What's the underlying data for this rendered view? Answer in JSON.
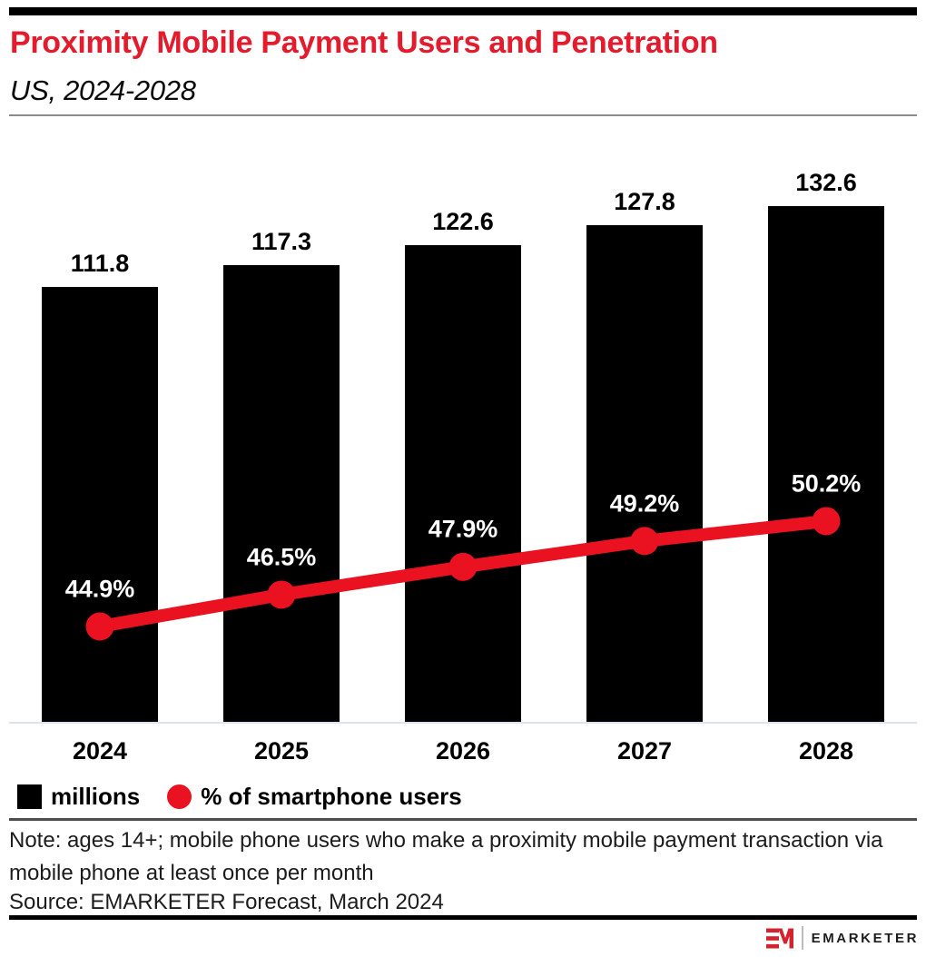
{
  "header": {
    "title": "Proximity Mobile Payment Users and Penetration",
    "subtitle": "US, 2024-2028"
  },
  "chart_data": {
    "type": "bar",
    "subtype": "bar-line-combo",
    "categories": [
      "2024",
      "2025",
      "2026",
      "2027",
      "2028"
    ],
    "series": [
      {
        "name": "millions",
        "type": "bar",
        "values": [
          111.8,
          117.3,
          122.6,
          127.8,
          132.6
        ],
        "labels": [
          "111.8",
          "117.3",
          "122.6",
          "127.8",
          "132.6"
        ],
        "color": "#000000"
      },
      {
        "name": "% of smartphone users",
        "type": "line",
        "values": [
          44.9,
          46.5,
          47.9,
          49.2,
          50.2
        ],
        "labels": [
          "44.9%",
          "46.5%",
          "47.9%",
          "49.2%",
          "50.2%"
        ],
        "color": "#ea1120"
      }
    ],
    "title": "Proximity Mobile Payment Users and Penetration",
    "subtitle": "US, 2024-2028",
    "xlabel": "",
    "ylabel": "",
    "grid": false,
    "legend_position": "bottom-left",
    "legend": [
      "millions",
      "% of smartphone users"
    ]
  },
  "footer": {
    "note": "Note: ages 14+; mobile phone users who make a proximity mobile payment transaction via mobile phone at least once per month",
    "source": "Source: EMARKETER Forecast, March 2024"
  },
  "logo": {
    "monogram": "EM",
    "wordmark": "EMARKETER"
  },
  "colors": {
    "title_red": "#e31b2c",
    "series_red": "#ea1120",
    "bar_black": "#000000",
    "axis_line": "#dde3ee",
    "header_divider": "#8c8c8c",
    "footer_divider": "#4d4d4d"
  }
}
